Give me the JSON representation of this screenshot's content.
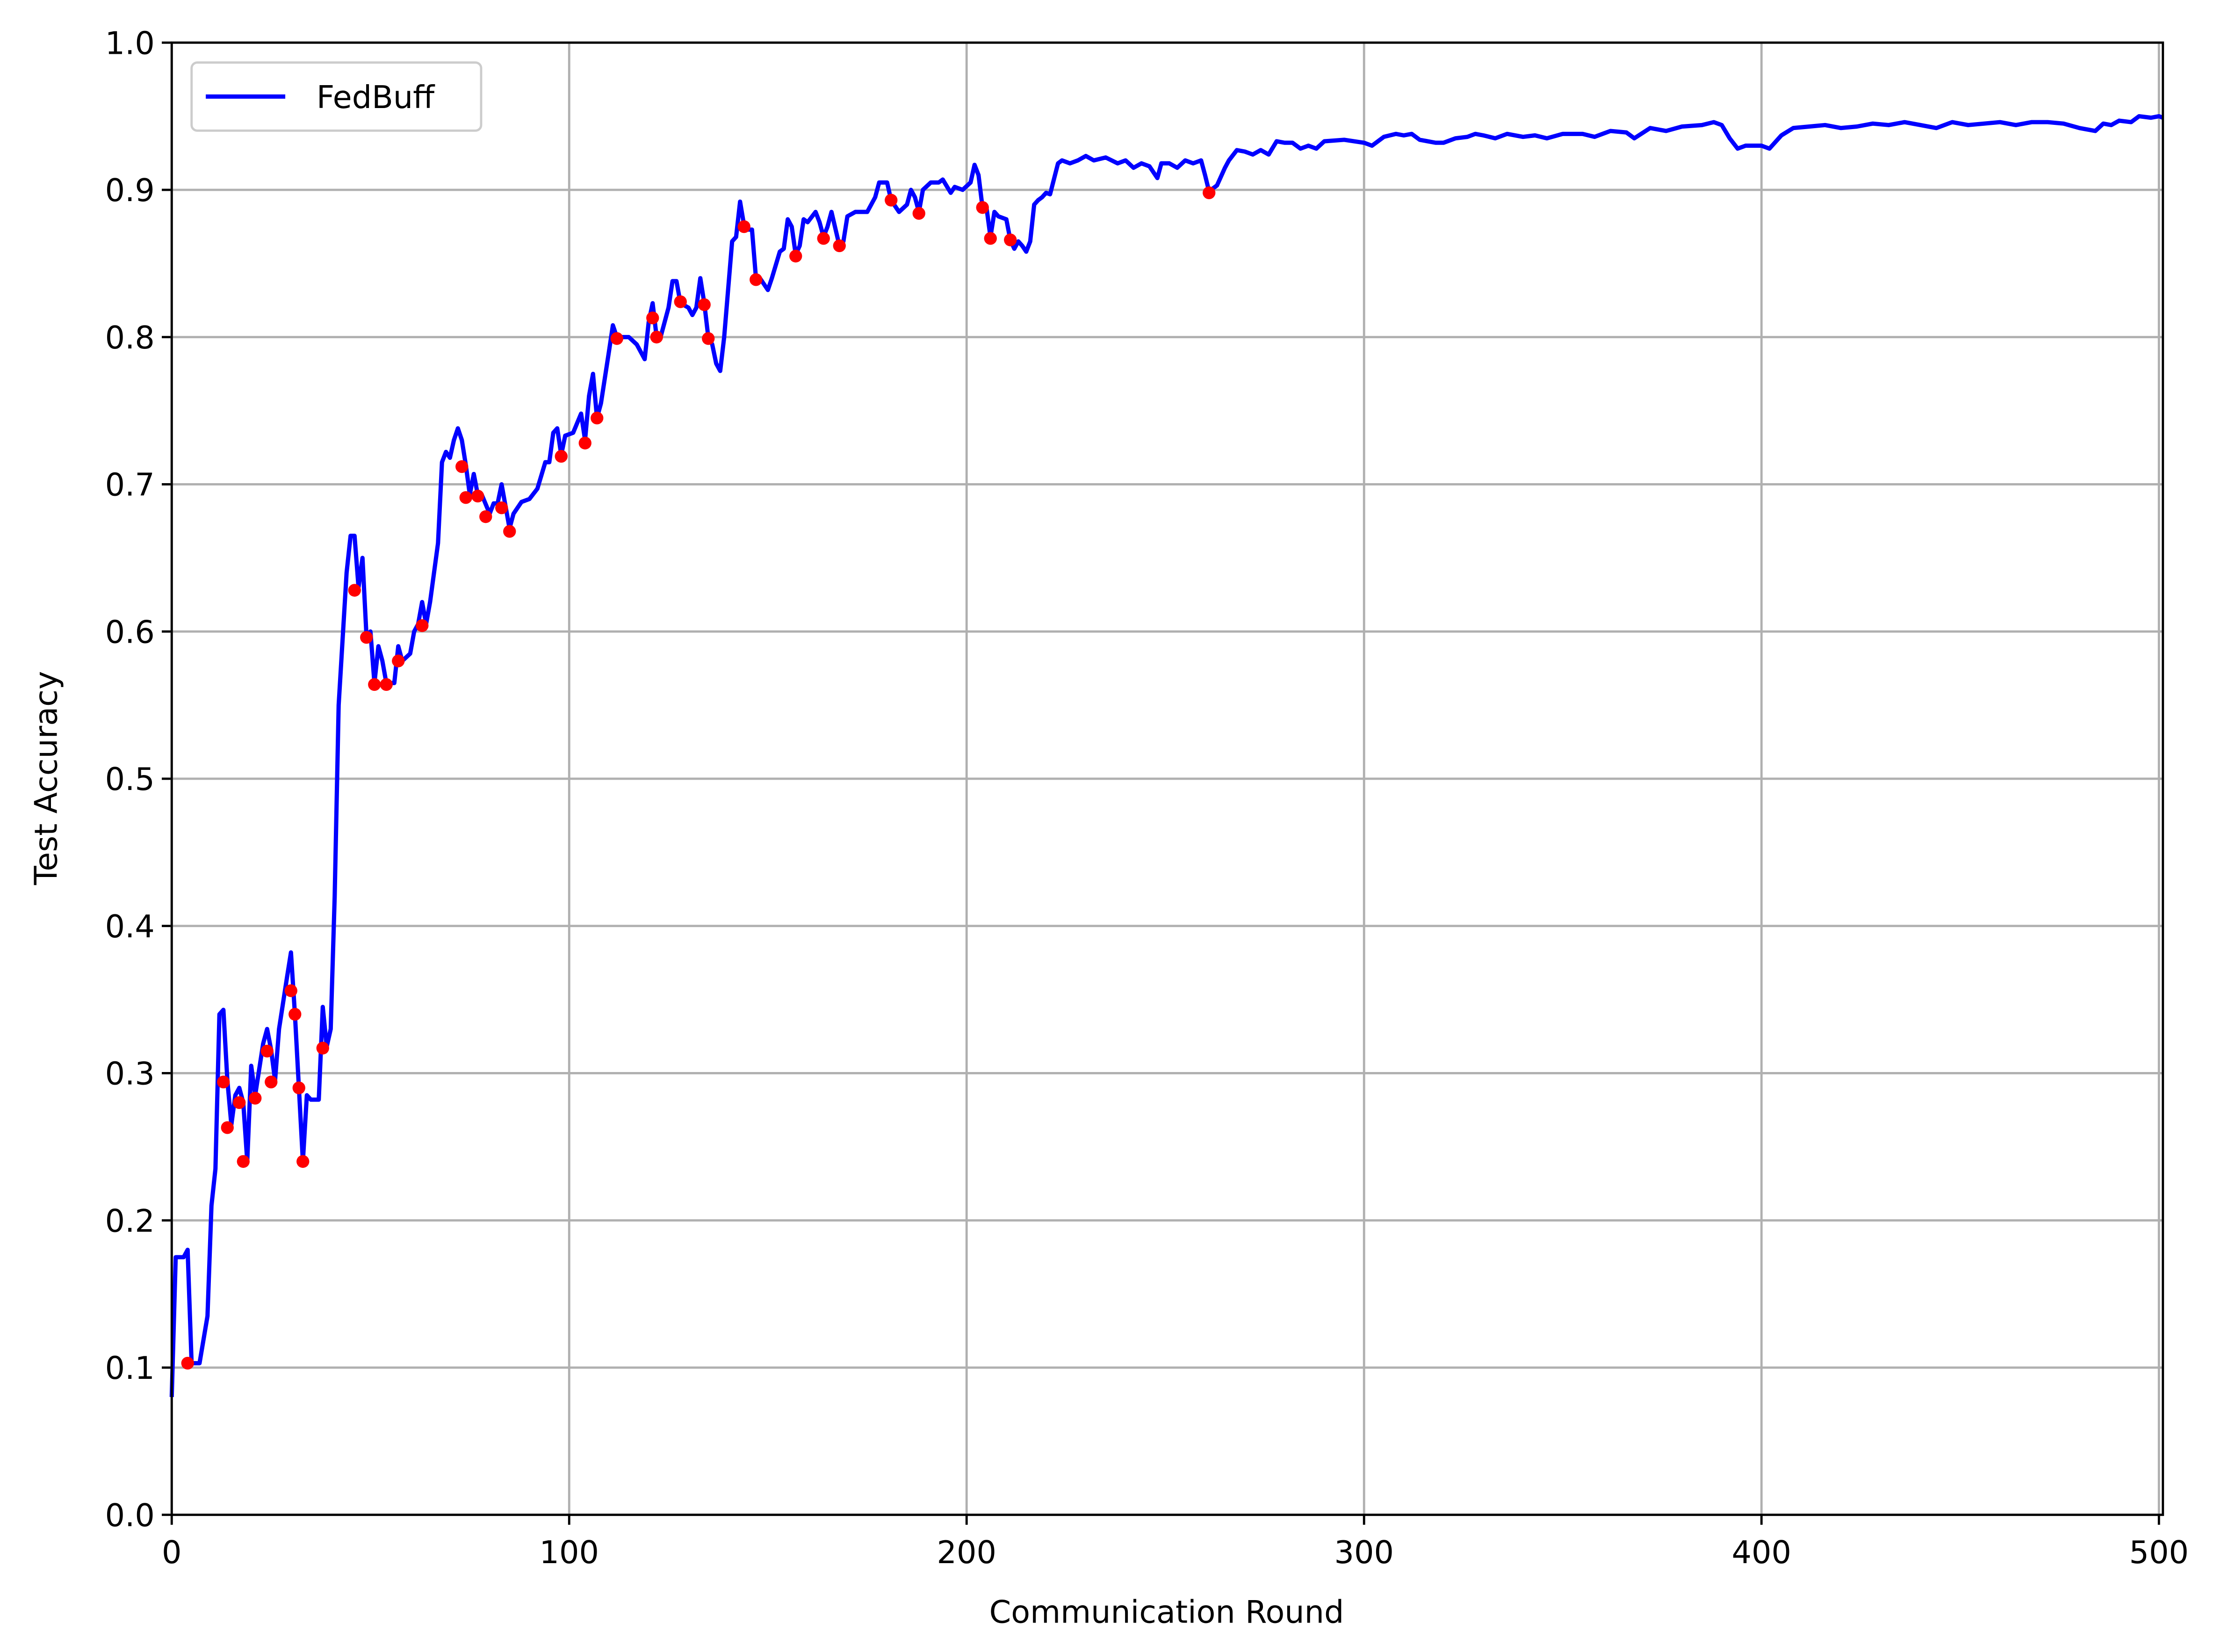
{
  "chart_data": {
    "type": "line",
    "x_label": "Communication Round",
    "y_label": "Test Accuracy",
    "xlim": [
      0,
      501
    ],
    "ylim": [
      0,
      1
    ],
    "xticks": [
      0,
      100,
      200,
      300,
      400,
      500
    ],
    "yticks": [
      {
        "value": 0,
        "label": "0.0"
      },
      0.1,
      0.2,
      0.3,
      0.4,
      0.5,
      0.6,
      0.7,
      0.8,
      0.9,
      {
        "value": 1,
        "label": "1.0"
      }
    ],
    "grid": true,
    "legend": "upper left",
    "series": [
      {
        "name": "FedBuff",
        "color": "#0000ff",
        "x": [
          0,
          1,
          3,
          4,
          5,
          7,
          9,
          10,
          11,
          12,
          13,
          14,
          15,
          16,
          17,
          18,
          19,
          20,
          21,
          23,
          24,
          25,
          26,
          27,
          29,
          30,
          31,
          32,
          33,
          34,
          35,
          37,
          38,
          39,
          40,
          41,
          42,
          44,
          45,
          46,
          47,
          48,
          49,
          50,
          51,
          52,
          53,
          54,
          56,
          57,
          58,
          60,
          61,
          62,
          63,
          64,
          65,
          67,
          68,
          69,
          70,
          71,
          72,
          73,
          74,
          75,
          76,
          77,
          78,
          80,
          81,
          82,
          83,
          84,
          85,
          86,
          88,
          90,
          92,
          94,
          95,
          96,
          97,
          98,
          99,
          101,
          103,
          104,
          105,
          106,
          107,
          108,
          110,
          111,
          112,
          113,
          115,
          117,
          119,
          120,
          121,
          122,
          123,
          125,
          126,
          127,
          128,
          130,
          131,
          132,
          133,
          134,
          135,
          136,
          137,
          138,
          139,
          141,
          142,
          143,
          144,
          145,
          146,
          147,
          148,
          150,
          151,
          153,
          154,
          155,
          156,
          157,
          158,
          159,
          160,
          162,
          163,
          164,
          165,
          166,
          168,
          169,
          170,
          172,
          175,
          177,
          178,
          180,
          181,
          183,
          185,
          186,
          187,
          188,
          189,
          191,
          193,
          194,
          196,
          197,
          199,
          201,
          202,
          203,
          204,
          205,
          206,
          207,
          208,
          210,
          211,
          212,
          213,
          214,
          215,
          216,
          217,
          218,
          219,
          220,
          221,
          223,
          224,
          226,
          228,
          230,
          232,
          235,
          238,
          240,
          242,
          244,
          246,
          248,
          249,
          251,
          253,
          255,
          257,
          259,
          260,
          261,
          263,
          265,
          266,
          268,
          270,
          272,
          274,
          276,
          278,
          280,
          282,
          284,
          286,
          288,
          290,
          295,
          300,
          302,
          305,
          308,
          310,
          312,
          314,
          318,
          320,
          323,
          326,
          328,
          330,
          333,
          336,
          340,
          343,
          346,
          350,
          355,
          358,
          362,
          366,
          368,
          372,
          376,
          380,
          385,
          388,
          390,
          392,
          394,
          396,
          400,
          402,
          405,
          408,
          412,
          416,
          420,
          424,
          428,
          432,
          436,
          440,
          444,
          448,
          452,
          456,
          460,
          464,
          468,
          472,
          476,
          480,
          484,
          486,
          488,
          490,
          493,
          495,
          498,
          500,
          501
        ],
        "values": [
          0.08,
          0.175,
          0.175,
          0.18,
          0.103,
          0.103,
          0.135,
          0.21,
          0.235,
          0.34,
          0.343,
          0.295,
          0.265,
          0.285,
          0.29,
          0.28,
          0.24,
          0.305,
          0.285,
          0.32,
          0.33,
          0.316,
          0.295,
          0.33,
          0.365,
          0.382,
          0.34,
          0.29,
          0.24,
          0.285,
          0.282,
          0.282,
          0.345,
          0.318,
          0.33,
          0.42,
          0.55,
          0.64,
          0.665,
          0.665,
          0.63,
          0.65,
          0.597,
          0.6,
          0.565,
          0.59,
          0.58,
          0.565,
          0.565,
          0.59,
          0.58,
          0.585,
          0.6,
          0.605,
          0.62,
          0.605,
          0.62,
          0.66,
          0.715,
          0.722,
          0.718,
          0.73,
          0.738,
          0.73,
          0.713,
          0.693,
          0.707,
          0.693,
          0.693,
          0.68,
          0.687,
          0.687,
          0.7,
          0.685,
          0.67,
          0.68,
          0.688,
          0.69,
          0.697,
          0.715,
          0.715,
          0.735,
          0.738,
          0.72,
          0.733,
          0.735,
          0.748,
          0.73,
          0.76,
          0.775,
          0.745,
          0.755,
          0.79,
          0.808,
          0.8,
          0.8,
          0.8,
          0.795,
          0.785,
          0.81,
          0.823,
          0.8,
          0.8,
          0.82,
          0.838,
          0.838,
          0.823,
          0.82,
          0.815,
          0.82,
          0.84,
          0.823,
          0.8,
          0.795,
          0.782,
          0.777,
          0.8,
          0.865,
          0.868,
          0.892,
          0.876,
          0.873,
          0.873,
          0.84,
          0.84,
          0.832,
          0.84,
          0.858,
          0.86,
          0.88,
          0.875,
          0.856,
          0.862,
          0.88,
          0.878,
          0.885,
          0.878,
          0.868,
          0.875,
          0.885,
          0.862,
          0.865,
          0.882,
          0.885,
          0.885,
          0.895,
          0.905,
          0.905,
          0.893,
          0.885,
          0.89,
          0.9,
          0.895,
          0.885,
          0.9,
          0.905,
          0.905,
          0.907,
          0.898,
          0.902,
          0.9,
          0.905,
          0.917,
          0.91,
          0.888,
          0.888,
          0.868,
          0.885,
          0.882,
          0.88,
          0.866,
          0.86,
          0.865,
          0.862,
          0.858,
          0.865,
          0.89,
          0.893,
          0.895,
          0.898,
          0.897,
          0.918,
          0.92,
          0.918,
          0.92,
          0.923,
          0.92,
          0.922,
          0.918,
          0.92,
          0.915,
          0.918,
          0.916,
          0.908,
          0.918,
          0.918,
          0.915,
          0.92,
          0.918,
          0.92,
          0.91,
          0.899,
          0.903,
          0.915,
          0.92,
          0.927,
          0.926,
          0.924,
          0.927,
          0.924,
          0.933,
          0.932,
          0.932,
          0.928,
          0.93,
          0.928,
          0.933,
          0.934,
          0.932,
          0.93,
          0.936,
          0.938,
          0.937,
          0.938,
          0.934,
          0.932,
          0.932,
          0.935,
          0.936,
          0.938,
          0.937,
          0.935,
          0.938,
          0.936,
          0.937,
          0.935,
          0.938,
          0.938,
          0.936,
          0.94,
          0.939,
          0.935,
          0.942,
          0.94,
          0.943,
          0.944,
          0.946,
          0.944,
          0.935,
          0.928,
          0.93,
          0.93,
          0.928,
          0.937,
          0.942,
          0.943,
          0.944,
          0.942,
          0.943,
          0.945,
          0.944,
          0.946,
          0.944,
          0.942,
          0.946,
          0.944,
          0.945,
          0.946,
          0.944,
          0.946,
          0.946,
          0.945,
          0.942,
          0.94,
          0.945,
          0.944,
          0.947,
          0.946,
          0.95,
          0.949,
          0.95,
          0.949
        ]
      },
      {
        "type": "scatter",
        "color": "#ff0000",
        "x": [
          4,
          13,
          14,
          17,
          18,
          21,
          24,
          25,
          30,
          31,
          32,
          33,
          38,
          46,
          49,
          51,
          54,
          57,
          63,
          73,
          74,
          77,
          79,
          83,
          85,
          98,
          104,
          107,
          112,
          121,
          122,
          128,
          134,
          135,
          144,
          147,
          157,
          164,
          168,
          181,
          188,
          204,
          206,
          211,
          261
        ],
        "values": [
          0.103,
          0.294,
          0.263,
          0.28,
          0.24,
          0.283,
          0.315,
          0.294,
          0.356,
          0.34,
          0.29,
          0.24,
          0.317,
          0.628,
          0.596,
          0.564,
          0.564,
          0.58,
          0.604,
          0.712,
          0.691,
          0.692,
          0.678,
          0.684,
          0.668,
          0.719,
          0.728,
          0.745,
          0.799,
          0.813,
          0.8,
          0.824,
          0.822,
          0.799,
          0.875,
          0.839,
          0.855,
          0.867,
          0.862,
          0.893,
          0.884,
          0.888,
          0.867,
          0.866,
          0.898
        ]
      }
    ]
  }
}
